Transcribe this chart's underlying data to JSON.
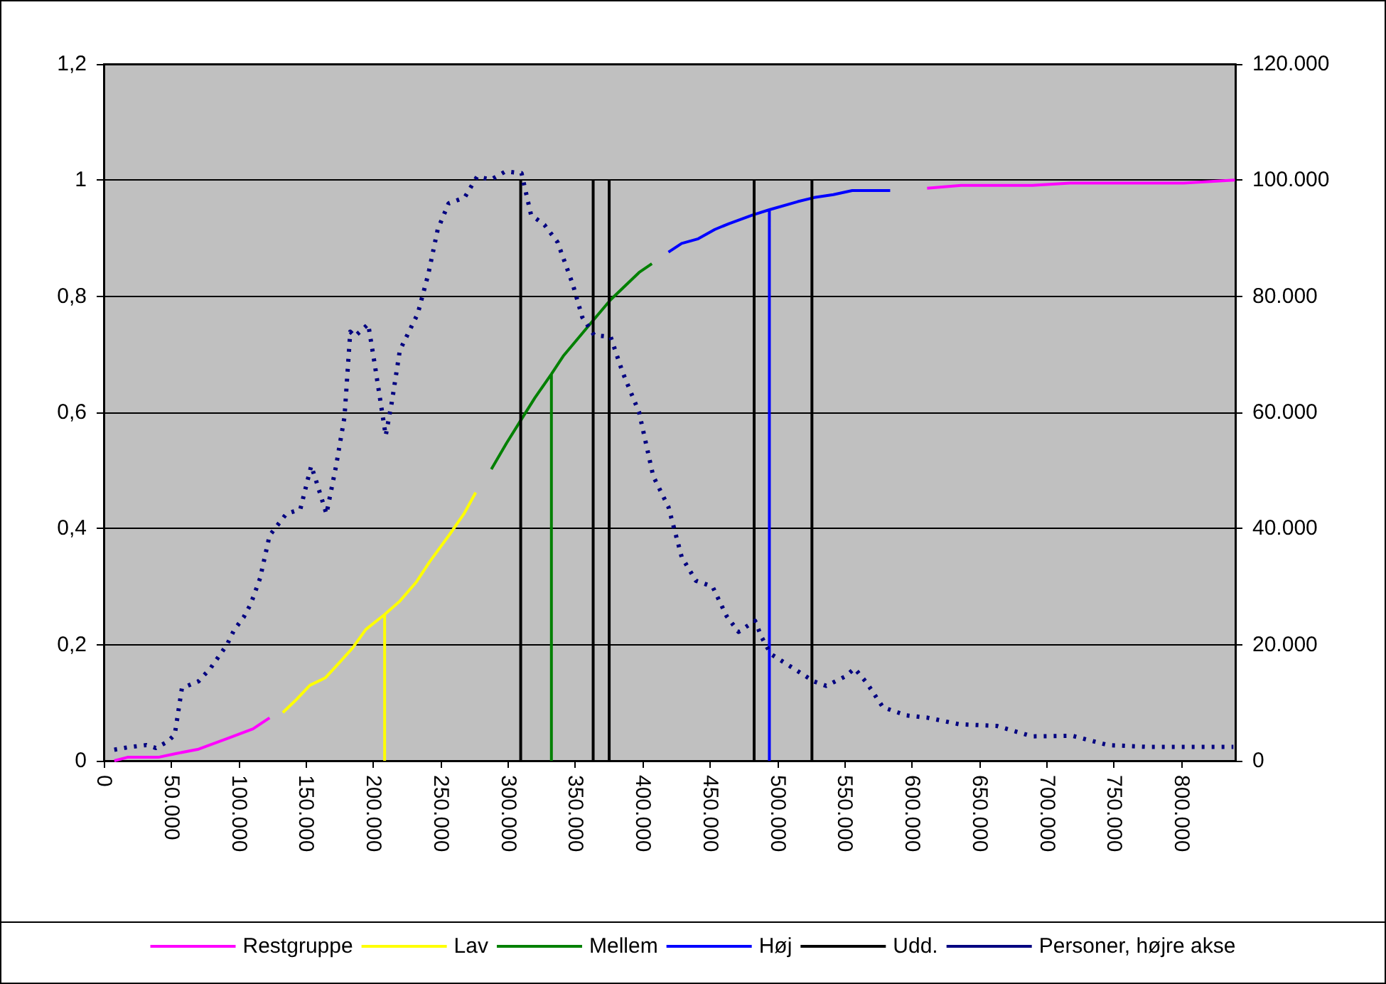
{
  "chart_data": {
    "type": "line",
    "xlim": [
      0,
      840000
    ],
    "ylim": [
      0,
      1.2
    ],
    "y2lim": [
      0,
      120000
    ],
    "xticks": [
      0,
      {
        "value": 50000,
        "label": "50.000"
      },
      {
        "value": 100000,
        "label": "100.000"
      },
      {
        "value": 150000,
        "label": "150.000"
      },
      {
        "value": 200000,
        "label": "200.000"
      },
      {
        "value": 250000,
        "label": "250.000"
      },
      {
        "value": 300000,
        "label": "300.000"
      },
      {
        "value": 350000,
        "label": "350.000"
      },
      {
        "value": 400000,
        "label": "400.000"
      },
      {
        "value": 450000,
        "label": "450.000"
      },
      {
        "value": 500000,
        "label": "500.000"
      },
      {
        "value": 550000,
        "label": "550.000"
      },
      {
        "value": 600000,
        "label": "600.000"
      },
      {
        "value": 650000,
        "label": "650.000"
      },
      {
        "value": 700000,
        "label": "700.000"
      },
      {
        "value": 750000,
        "label": "750.000"
      },
      {
        "value": 800000,
        "label": "800.000"
      }
    ],
    "yticks": [
      0,
      {
        "value": 0.2,
        "label": "0,2"
      },
      {
        "value": 0.4,
        "label": "0,4"
      },
      {
        "value": 0.6,
        "label": "0,6"
      },
      {
        "value": 0.8,
        "label": "0,8"
      },
      1,
      {
        "value": 1.2,
        "label": "1,2"
      }
    ],
    "y2ticks": [
      0,
      {
        "value": 20000,
        "label": "20.000"
      },
      {
        "value": 40000,
        "label": "40.000"
      },
      {
        "value": 60000,
        "label": "60.000"
      },
      {
        "value": 80000,
        "label": "80.000"
      },
      {
        "value": 100000,
        "label": "100.000"
      },
      {
        "value": 120000,
        "label": "120.000"
      }
    ],
    "grid": "y",
    "legend": "bottom",
    "marker": "none",
    "series": [
      {
        "name": "Restgruppe",
        "color": "#ff00ff",
        "x": [
          7800,
          17600,
          40500,
          52700,
          70400,
          91500,
          110800,
          123100,
          null,
          611200,
          636500,
          689300,
          717300,
          801700,
          839700
        ],
        "values": [
          0,
          0.006,
          0.006,
          0.012,
          0.02,
          0.038,
          0.055,
          0.074,
          null,
          0.986,
          0.991,
          0.991,
          0.995,
          0.995,
          1.0
        ]
      },
      {
        "name": "Lav",
        "color": "#ffff00",
        "x": [
          132900,
          142400,
          153000,
          164600,
          174100,
          184600,
          194500,
          208500,
          219800,
          232100,
          242000,
          256800,
          267300,
          276100,
          null,
          208500,
          208500
        ],
        "values": [
          0.083,
          0.104,
          0.13,
          0.143,
          0.167,
          0.194,
          0.226,
          0.252,
          0.275,
          0.308,
          0.343,
          0.39,
          0.425,
          0.462,
          null,
          0,
          0.252
        ]
      },
      {
        "name": "Mellem",
        "color": "#008000",
        "x": [
          287700,
          299000,
          309500,
          320000,
          332300,
          341100,
          363900,
          376300,
          397400,
          406900,
          null,
          332300,
          332300
        ],
        "values": [
          0.502,
          0.547,
          0.586,
          0.625,
          0.666,
          0.697,
          0.76,
          0.794,
          0.841,
          0.856,
          null,
          0,
          0.666
        ]
      },
      {
        "name": "Høj",
        "color": "#0000ff",
        "x": [
          419200,
          429000,
          441300,
          453600,
          464100,
          481700,
          494100,
          515200,
          527400,
          541600,
          555600,
          583800,
          null,
          494100,
          494100
        ],
        "values": [
          0.876,
          0.891,
          0.899,
          0.915,
          0.925,
          0.94,
          0.949,
          0.963,
          0.97,
          0.975,
          0.982,
          0.982,
          null,
          0,
          0.949
        ]
      },
      {
        "name": "Udd.",
        "color": "#000000",
        "x": [
          309500,
          309500,
          null,
          363300,
          363300,
          null,
          375200,
          375200,
          null,
          482800,
          482800,
          null,
          525700,
          525700
        ],
        "values": [
          0,
          1,
          null,
          0,
          1,
          null,
          0,
          1,
          null,
          0,
          1,
          null,
          0,
          1
        ]
      },
      {
        "name": "Personer, højre akse",
        "color": "#000080",
        "axis": "y2",
        "line_style": "dotted",
        "x": [
          7800,
          17600,
          31600,
          38700,
          47500,
          52700,
          58000,
          70400,
          79100,
          91500,
          96700,
          103800,
          109100,
          116000,
          123100,
          135400,
          145900,
          154000,
          158200,
          165300,
          172400,
          178700,
          183000,
          186400,
          196300,
          201200,
          209300,
          213800,
          219800,
          233100,
          240900,
          247900,
          256000,
          267900,
          277100,
          287700,
          298200,
          310100,
          317200,
          327100,
          336900,
          348100,
          355200,
          364000,
          376300,
          385000,
          397400,
          407900,
          419200,
          429000,
          439600,
          451900,
          462400,
          471200,
          483500,
          488100,
          495100,
          513400,
          526800,
          536300,
          550300,
          557400,
          566100,
          578500,
          596000,
          611800,
          634700,
          662900,
          689300,
          719100,
          745500,
          773600,
          801700,
          838600
        ],
        "values": [
          1900,
          2300,
          2700,
          2200,
          3300,
          4500,
          12500,
          13700,
          15900,
          20000,
          22500,
          24700,
          27000,
          31400,
          38800,
          42500,
          43300,
          50800,
          47800,
          42500,
          50700,
          59200,
          73900,
          73100,
          75200,
          68200,
          56000,
          61700,
          70700,
          77000,
          83800,
          91500,
          96000,
          97000,
          100600,
          100100,
          101500,
          101200,
          94000,
          92300,
          89300,
          82100,
          76400,
          73300,
          73000,
          67000,
          60000,
          49000,
          43700,
          35100,
          31000,
          30000,
          24900,
          22200,
          24100,
          21400,
          18400,
          15700,
          13700,
          12900,
          14500,
          15900,
          13500,
          9200,
          7800,
          7400,
          6300,
          6000,
          4200,
          4300,
          2700,
          2400,
          2400,
          2400
        ]
      }
    ]
  }
}
